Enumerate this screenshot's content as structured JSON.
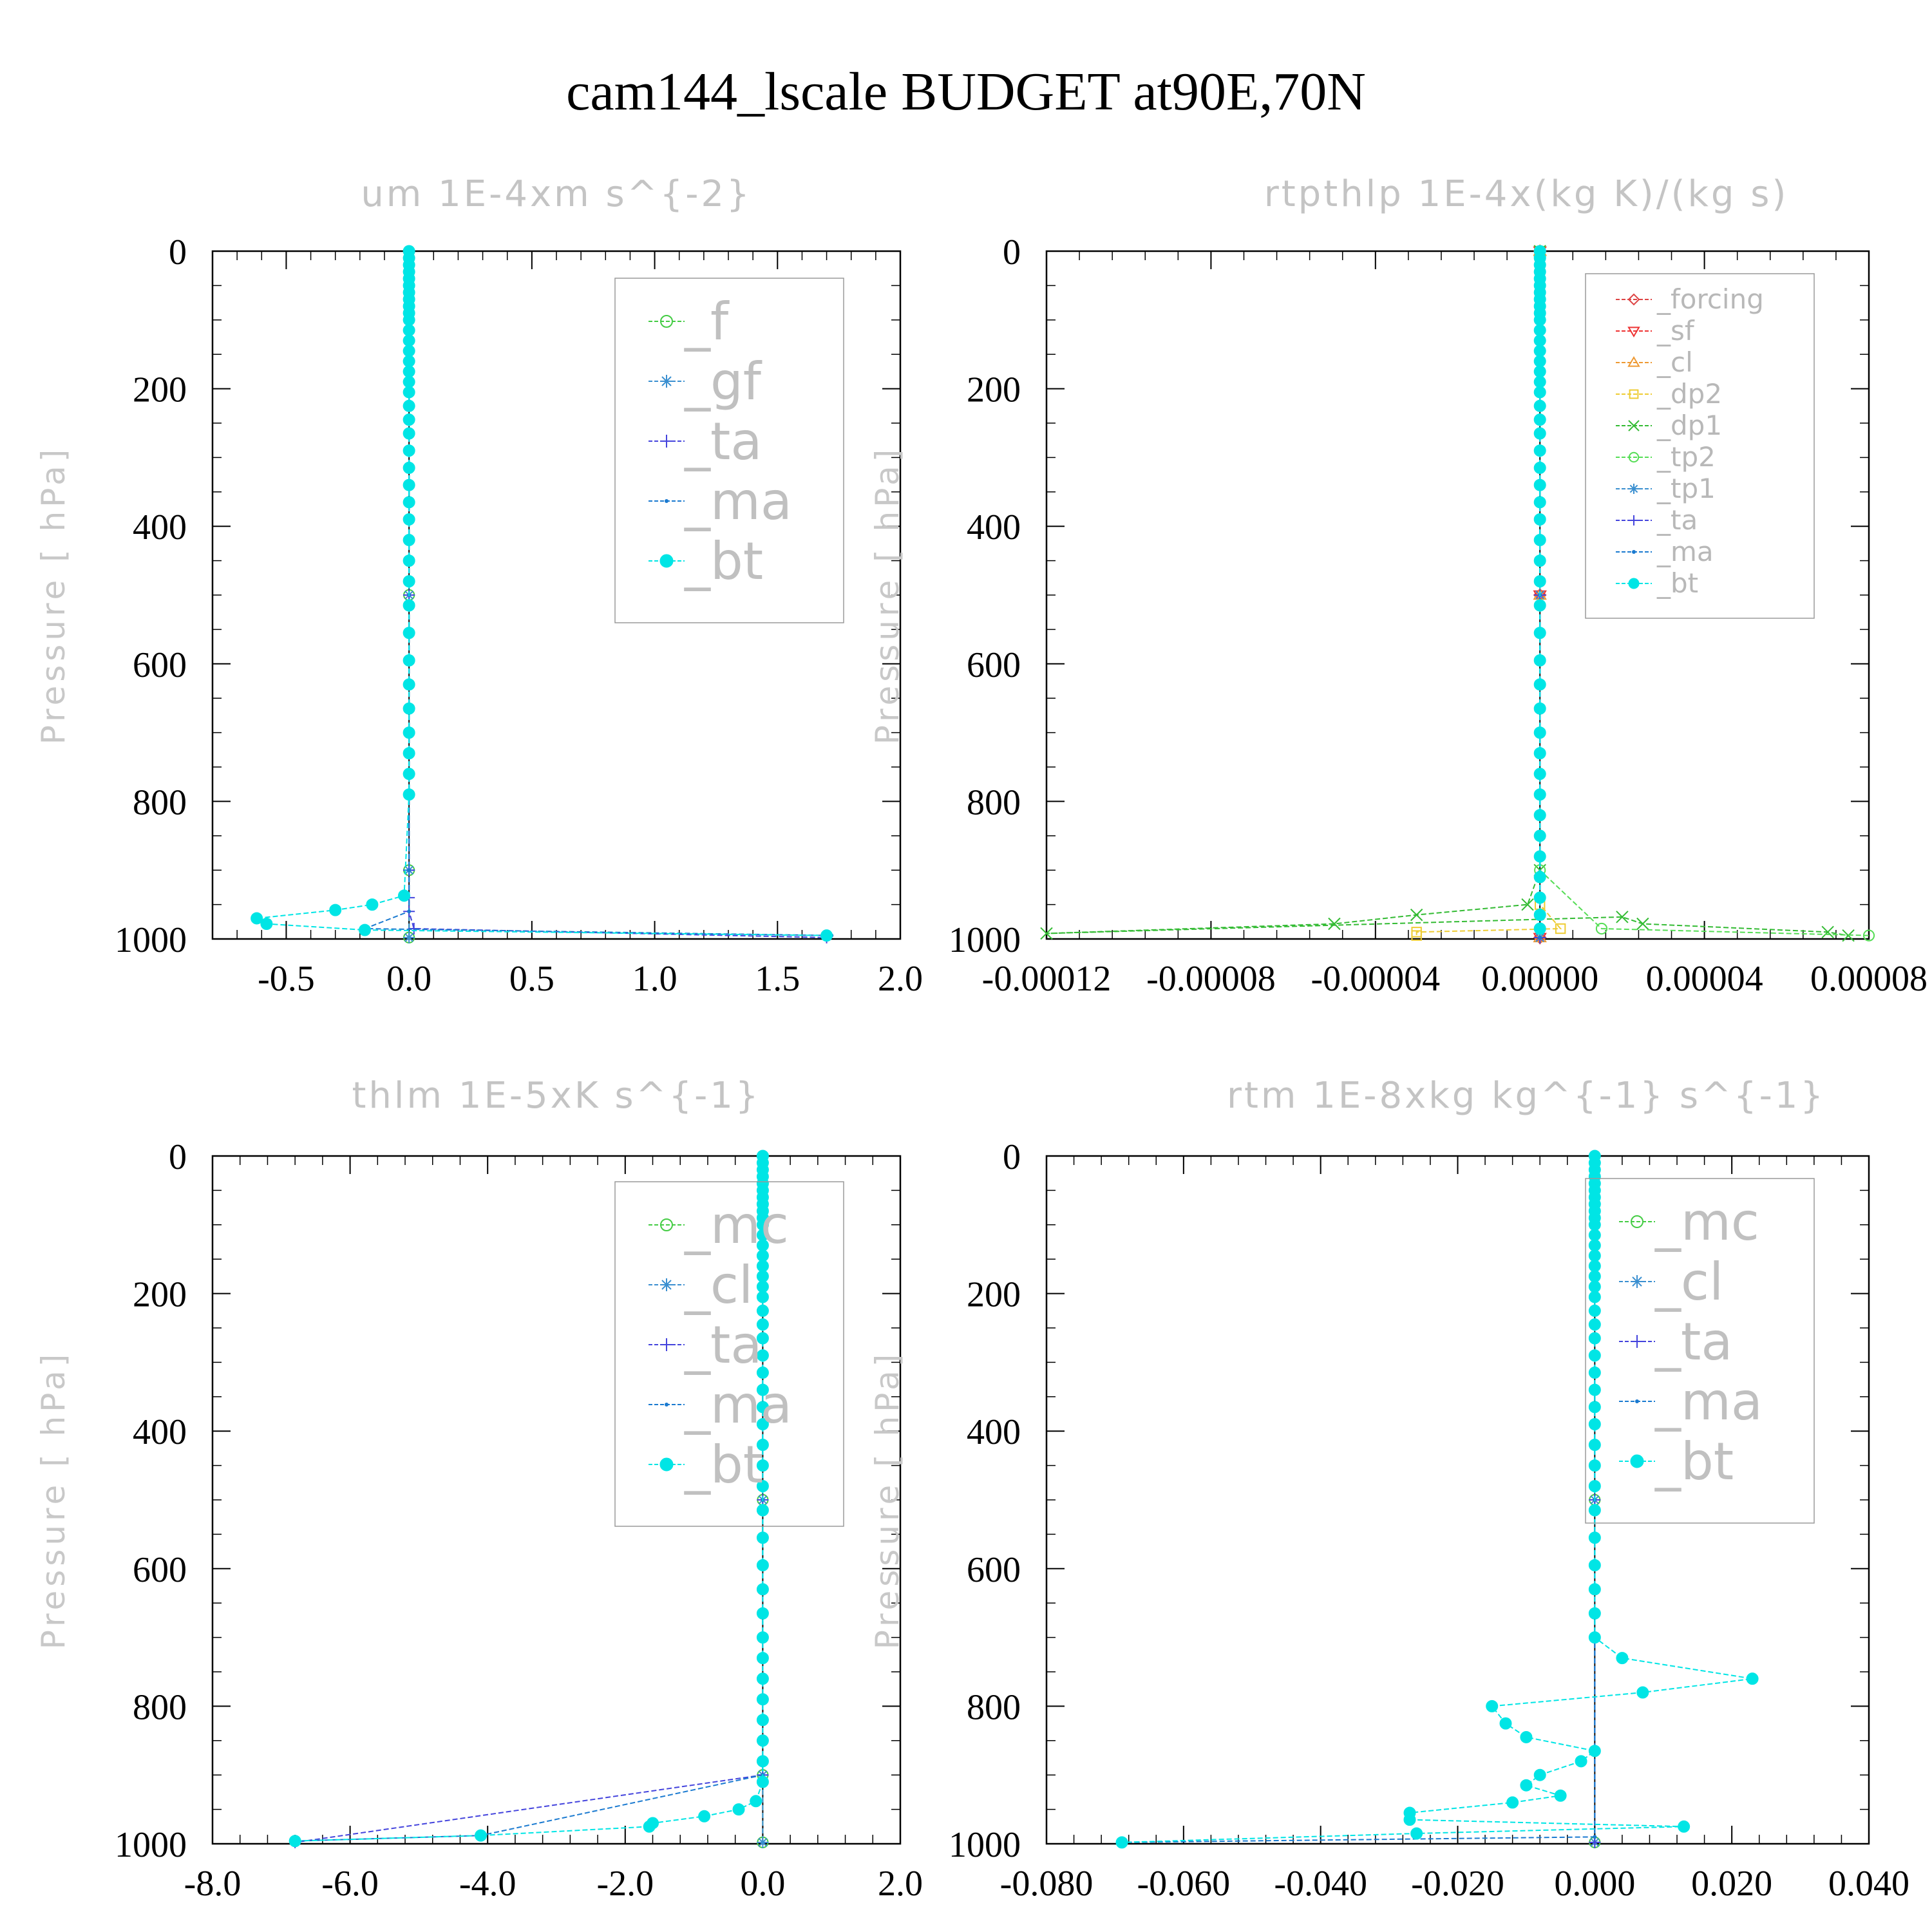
{
  "figure": {
    "title": "cam144_lscale  BUDGET at90E,70N"
  },
  "chart_data": [
    {
      "type": "line",
      "title": "um   1E-4xm s^{-2}",
      "ylabel": "Pressure [ hPa]",
      "xlim": [
        -0.8,
        2.0
      ],
      "ylim": [
        1000,
        0
      ],
      "xticks": [
        "-0.5",
        "0.0",
        "0.5",
        "1.0",
        "1.5",
        "2.0"
      ],
      "xtick_values": [
        -0.5,
        0.0,
        0.5,
        1.0,
        1.5,
        2.0
      ],
      "yticks": [
        "0",
        "200",
        "400",
        "600",
        "800",
        "1000"
      ],
      "legend": {
        "placement": "upper-right",
        "size": "large"
      },
      "series": [
        {
          "name": "_f",
          "color": "#44cc44",
          "marker": "circle-open",
          "x": [
            0,
            0,
            0,
            0
          ],
          "y": [
            0,
            500,
            900,
            998
          ]
        },
        {
          "name": "_gf",
          "color": "#3a8fd0",
          "marker": "asterisk",
          "x": [
            0,
            0,
            0,
            0
          ],
          "y": [
            0,
            500,
            900,
            998
          ]
        },
        {
          "name": "_ta",
          "color": "#4444dd",
          "marker": "plus",
          "x": [
            0,
            0,
            0,
            0,
            0,
            0.02,
            1.7
          ],
          "y": [
            0,
            500,
            900,
            940,
            960,
            985,
            998
          ]
        },
        {
          "name": "_ma",
          "color": "#1a7ad0",
          "marker": "dot",
          "x": [
            0,
            0,
            0,
            0,
            -0.18,
            1.72
          ],
          "y": [
            0,
            500,
            900,
            960,
            985,
            995
          ]
        },
        {
          "name": "_bt",
          "color": "#00e5e5",
          "marker": "circle-filled",
          "x": [
            0,
            0,
            0,
            0,
            0,
            0,
            0,
            0,
            0,
            0,
            0,
            0,
            0,
            0,
            0,
            0,
            0,
            0,
            0,
            0,
            0,
            0,
            0,
            0,
            0,
            0,
            0,
            0,
            0,
            0,
            0,
            0,
            0,
            0,
            0,
            0,
            0,
            0,
            -0.02,
            -0.15,
            -0.3,
            -0.62,
            -0.58,
            -0.18,
            1.7
          ],
          "y": [
            0,
            10,
            20,
            30,
            40,
            50,
            60,
            70,
            80,
            90,
            100,
            115,
            130,
            145,
            160,
            175,
            190,
            205,
            225,
            245,
            265,
            290,
            315,
            340,
            365,
            390,
            420,
            450,
            480,
            515,
            555,
            595,
            630,
            665,
            700,
            730,
            760,
            790,
            937,
            950,
            958,
            970,
            978,
            987,
            995
          ]
        }
      ]
    },
    {
      "type": "line",
      "title": "rtpthlp   1E-4x(kg K)/(kg s)",
      "ylabel": "Pressure [ hPa]",
      "xlim": [
        -0.00012,
        8e-05
      ],
      "ylim": [
        1000,
        0
      ],
      "xticks": [
        "-0.00012",
        "-0.00008",
        "-0.00004",
        "0.00000",
        "0.00004",
        "0.00008"
      ],
      "xtick_values": [
        -0.00012,
        -8e-05,
        -4e-05,
        0.0,
        4e-05,
        8e-05
      ],
      "yticks": [
        "0",
        "200",
        "400",
        "600",
        "800",
        "1000"
      ],
      "legend": {
        "placement": "upper-right",
        "size": "small"
      },
      "series": [
        {
          "name": "_forcing",
          "color": "#dd4444",
          "marker": "diamond-open",
          "x": [
            0,
            0,
            0
          ],
          "y": [
            0,
            500,
            998
          ]
        },
        {
          "name": "_sf",
          "color": "#ee3333",
          "marker": "triangle-down",
          "x": [
            0,
            0,
            0
          ],
          "y": [
            0,
            500,
            998
          ]
        },
        {
          "name": "_cl",
          "color": "#ee9933",
          "marker": "triangle-up",
          "x": [
            0,
            0,
            0
          ],
          "y": [
            0,
            500,
            998
          ]
        },
        {
          "name": "_dp2",
          "color": "#eecc33",
          "marker": "square-open",
          "x": [
            0,
            0,
            5e-06,
            -3e-05,
            -3e-05
          ],
          "y": [
            0,
            950,
            985,
            990,
            995
          ]
        },
        {
          "name": "_dp1",
          "color": "#33bb33",
          "marker": "x",
          "x": [
            0,
            0,
            -3e-06,
            -3e-05,
            -5e-05,
            -0.00012,
            2e-05,
            2.5e-05,
            7e-05,
            7.5e-05
          ],
          "y": [
            0,
            900,
            950,
            965,
            978,
            992,
            968,
            978,
            990,
            995
          ]
        },
        {
          "name": "_tp2",
          "color": "#55dd55",
          "marker": "circle-open",
          "x": [
            0,
            0,
            1.5e-05,
            8e-05
          ],
          "y": [
            0,
            900,
            985,
            995
          ]
        },
        {
          "name": "_tp1",
          "color": "#3a8fd0",
          "marker": "asterisk",
          "x": [
            0,
            0,
            0
          ],
          "y": [
            0,
            500,
            998
          ]
        },
        {
          "name": "_ta",
          "color": "#4444dd",
          "marker": "plus",
          "x": [
            0,
            0,
            0
          ],
          "y": [
            0,
            500,
            998
          ]
        },
        {
          "name": "_ma",
          "color": "#1a7ad0",
          "marker": "dot",
          "x": [
            0,
            0,
            0
          ],
          "y": [
            0,
            500,
            998
          ]
        },
        {
          "name": "_bt",
          "color": "#00e5e5",
          "marker": "circle-filled",
          "x": [
            0,
            0,
            0,
            0,
            0,
            0,
            0,
            0,
            0,
            0,
            0,
            0,
            0,
            0,
            0,
            0,
            0,
            0,
            0,
            0,
            0,
            0,
            0,
            0,
            0,
            0,
            0,
            0,
            0,
            0,
            0,
            0,
            0,
            0,
            0,
            0,
            0,
            0,
            0,
            0,
            0,
            0,
            0,
            0,
            0
          ],
          "y": [
            0,
            10,
            20,
            30,
            40,
            50,
            60,
            70,
            80,
            90,
            100,
            115,
            130,
            145,
            160,
            175,
            190,
            205,
            225,
            245,
            265,
            290,
            315,
            340,
            365,
            390,
            420,
            450,
            480,
            515,
            555,
            595,
            630,
            665,
            700,
            730,
            760,
            790,
            820,
            850,
            880,
            910,
            940,
            965,
            985
          ]
        }
      ]
    },
    {
      "type": "line",
      "title": "thlm   1E-5xK s^{-1}",
      "ylabel": "Pressure [ hPa]",
      "xlim": [
        -8.0,
        2.0
      ],
      "ylim": [
        1000,
        0
      ],
      "xticks": [
        "-8.0",
        "-6.0",
        "-4.0",
        "-2.0",
        "0.0",
        "2.0"
      ],
      "xtick_values": [
        -8.0,
        -6.0,
        -4.0,
        -2.0,
        0.0,
        2.0
      ],
      "yticks": [
        "0",
        "200",
        "400",
        "600",
        "800",
        "1000"
      ],
      "legend": {
        "placement": "upper-right",
        "size": "large"
      },
      "series": [
        {
          "name": "_mc",
          "color": "#44cc44",
          "marker": "circle-open",
          "x": [
            0,
            0,
            0,
            0
          ],
          "y": [
            0,
            500,
            900,
            998
          ]
        },
        {
          "name": "_cl",
          "color": "#3a8fd0",
          "marker": "asterisk",
          "x": [
            0,
            0,
            0,
            0
          ],
          "y": [
            0,
            500,
            900,
            998
          ]
        },
        {
          "name": "_ta",
          "color": "#4444dd",
          "marker": "plus",
          "x": [
            0,
            0,
            0,
            -6.8
          ],
          "y": [
            0,
            500,
            900,
            998
          ]
        },
        {
          "name": "_ma",
          "color": "#1a7ad0",
          "marker": "dot",
          "x": [
            0,
            0,
            0,
            -4.1,
            -6.8
          ],
          "y": [
            0,
            500,
            900,
            988,
            996
          ]
        },
        {
          "name": "_bt",
          "color": "#00e5e5",
          "marker": "circle-filled",
          "x": [
            0,
            0,
            0,
            0,
            0,
            0,
            0,
            0,
            0,
            0,
            0,
            0,
            0,
            0,
            0,
            0,
            0,
            0,
            0,
            0,
            0,
            0,
            0,
            0,
            0,
            0,
            0,
            0,
            0,
            0,
            0,
            0,
            0,
            0,
            0,
            0,
            0,
            0,
            0,
            0,
            0,
            0,
            -0.1,
            -0.35,
            -0.85,
            -1.6,
            -1.65,
            -4.1,
            -6.8
          ],
          "y": [
            0,
            10,
            20,
            30,
            40,
            50,
            60,
            70,
            80,
            90,
            100,
            115,
            130,
            145,
            160,
            175,
            190,
            205,
            225,
            245,
            265,
            290,
            315,
            340,
            365,
            390,
            420,
            450,
            480,
            515,
            555,
            595,
            630,
            665,
            700,
            730,
            760,
            790,
            820,
            850,
            880,
            910,
            938,
            950,
            960,
            970,
            975,
            988,
            996
          ]
        }
      ]
    },
    {
      "type": "line",
      "title": "rtm   1E-8xkg kg^{-1} s^{-1}",
      "ylabel": "Pressure [ hPa]",
      "xlim": [
        -0.08,
        0.04
      ],
      "ylim": [
        1000,
        0
      ],
      "xticks": [
        "-0.080",
        "-0.060",
        "-0.040",
        "-0.020",
        "0.000",
        "0.020",
        "0.040"
      ],
      "xtick_values": [
        -0.08,
        -0.06,
        -0.04,
        -0.02,
        0.0,
        0.02,
        0.04
      ],
      "yticks": [
        "0",
        "200",
        "400",
        "600",
        "800",
        "1000"
      ],
      "legend": {
        "placement": "upper-right",
        "size": "large"
      },
      "series": [
        {
          "name": "_mc",
          "color": "#44cc44",
          "marker": "circle-open",
          "x": [
            0,
            0,
            0
          ],
          "y": [
            0,
            500,
            998
          ]
        },
        {
          "name": "_cl",
          "color": "#3a8fd0",
          "marker": "asterisk",
          "x": [
            0,
            0,
            0
          ],
          "y": [
            0,
            500,
            998
          ]
        },
        {
          "name": "_ta",
          "color": "#4444dd",
          "marker": "plus",
          "x": [
            0,
            0,
            0
          ],
          "y": [
            0,
            500,
            998
          ]
        },
        {
          "name": "_ma",
          "color": "#1a7ad0",
          "marker": "dot",
          "x": [
            0,
            0,
            0,
            -0.069
          ],
          "y": [
            0,
            500,
            990,
            998
          ]
        },
        {
          "name": "_bt",
          "color": "#00e5e5",
          "marker": "circle-filled",
          "x": [
            0,
            0,
            0,
            0,
            0,
            0,
            0,
            0,
            0,
            0,
            0,
            0,
            0,
            0,
            0,
            0,
            0,
            0,
            0,
            0,
            0,
            0,
            0,
            0,
            0,
            0,
            0,
            0,
            0,
            0,
            0,
            0,
            0,
            0,
            0,
            0.004,
            0.023,
            0.007,
            -0.015,
            -0.013,
            -0.01,
            0.0,
            -0.002,
            -0.008,
            -0.01,
            -0.005,
            -0.012,
            -0.027,
            -0.027,
            0.013,
            -0.026,
            -0.069
          ],
          "y": [
            0,
            10,
            20,
            30,
            40,
            50,
            60,
            70,
            80,
            90,
            100,
            115,
            130,
            145,
            160,
            175,
            190,
            205,
            225,
            245,
            265,
            290,
            315,
            340,
            365,
            390,
            420,
            450,
            480,
            515,
            555,
            595,
            630,
            665,
            700,
            730,
            760,
            780,
            800,
            825,
            845,
            865,
            880,
            900,
            915,
            930,
            940,
            955,
            965,
            975,
            985,
            998
          ]
        }
      ]
    }
  ]
}
